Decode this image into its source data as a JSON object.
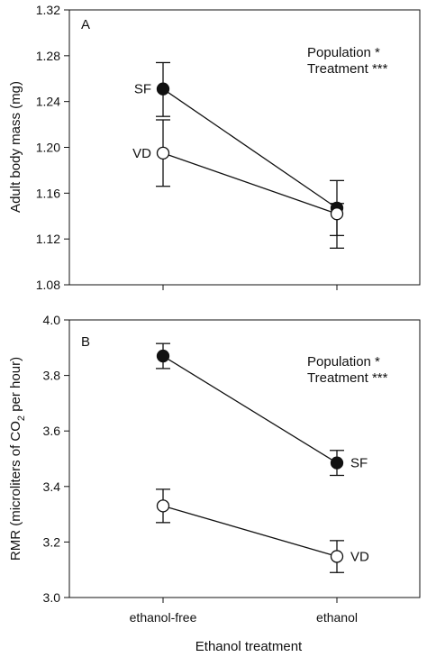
{
  "chart_data": [
    {
      "type": "line",
      "panel_label": "A",
      "ylabel": "Adult body mass (mg)",
      "ylim": [
        1.08,
        1.32
      ],
      "yticks": [
        "1.08",
        "1.12",
        "1.16",
        "1.20",
        "1.24",
        "1.28",
        "1.32"
      ],
      "categories": [
        "ethanol-free",
        "ethanol"
      ],
      "annotations": [
        "Population *",
        "Treatment ***"
      ],
      "series": [
        {
          "name": "SF",
          "values": [
            1.251,
            1.147
          ],
          "err_low": [
            1.227,
            1.123
          ],
          "err_high": [
            1.274,
            1.171
          ],
          "marker": "filled"
        },
        {
          "name": "VD",
          "values": [
            1.195,
            1.142
          ],
          "err_low": [
            1.166,
            1.112
          ],
          "err_high": [
            1.224,
            1.151
          ],
          "marker": "open"
        }
      ]
    },
    {
      "type": "line",
      "panel_label": "B",
      "ylabel_parts": [
        "RMR (microliters of CO",
        "2",
        " per hour)"
      ],
      "ylim": [
        3.0,
        4.0
      ],
      "yticks": [
        "3.0",
        "3.2",
        "3.4",
        "3.6",
        "3.8",
        "4.0"
      ],
      "categories": [
        "ethanol-free",
        "ethanol"
      ],
      "xlabel": "Ethanol treatment",
      "annotations": [
        "Population *",
        "Treatment ***"
      ],
      "series": [
        {
          "name": "SF",
          "values": [
            3.87,
            3.485
          ],
          "err_low": [
            3.825,
            3.44
          ],
          "err_high": [
            3.915,
            3.53
          ],
          "marker": "filled"
        },
        {
          "name": "VD",
          "values": [
            3.33,
            3.148
          ],
          "err_low": [
            3.27,
            3.09
          ],
          "err_high": [
            3.39,
            3.205
          ],
          "marker": "open"
        }
      ]
    }
  ]
}
